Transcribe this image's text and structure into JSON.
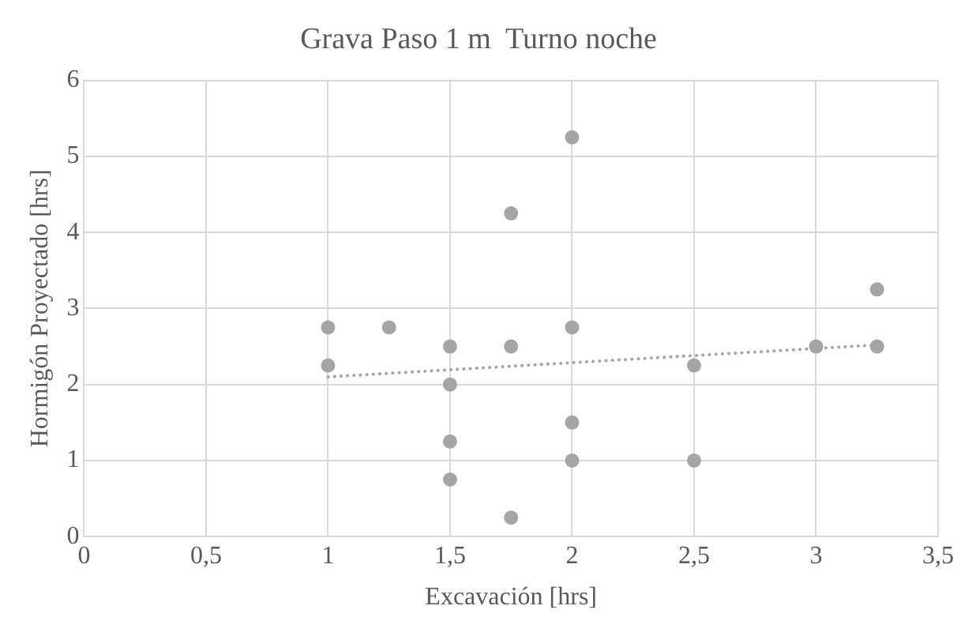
{
  "chart_data": {
    "type": "scatter",
    "title": "Grava Paso 1 m  Turno noche",
    "xlabel": "Excavación [hrs]",
    "ylabel": "Hormigón Proyectado [hrs]",
    "xlim": [
      0,
      3.5
    ],
    "xticks": [
      0,
      {
        "value": 0.5,
        "label": "0,5"
      },
      1,
      {
        "value": 1.5,
        "label": "1,5"
      },
      2,
      {
        "value": 2.5,
        "label": "2,5"
      },
      3,
      {
        "value": 3.5,
        "label": "3,5"
      }
    ],
    "ylim": [
      0,
      6
    ],
    "yticks": [
      0,
      1,
      2,
      3,
      4,
      5,
      6
    ],
    "grid": true,
    "legend": false,
    "series": [
      {
        "type": "scatter",
        "color": "#a5a5a5",
        "marker": "circle",
        "x": [
          1,
          1,
          1.25,
          1.5,
          1.5,
          1.5,
          1.5,
          1.75,
          1.75,
          1.75,
          2,
          2,
          2,
          2,
          2.5,
          2.5,
          3,
          3.25,
          3.25
        ],
        "values": [
          2.75,
          2.25,
          2.75,
          2.5,
          2,
          1.25,
          0.75,
          4.25,
          2.5,
          0.25,
          5.25,
          2.75,
          1.5,
          1,
          2.25,
          1,
          2.5,
          3.25,
          2.5
        ]
      },
      {
        "type": "line",
        "color": "#a5a5a5",
        "marker": "none",
        "line_style": "dotted",
        "x": [
          1,
          3.25
        ],
        "values": [
          2.1,
          2.52
        ]
      }
    ]
  }
}
